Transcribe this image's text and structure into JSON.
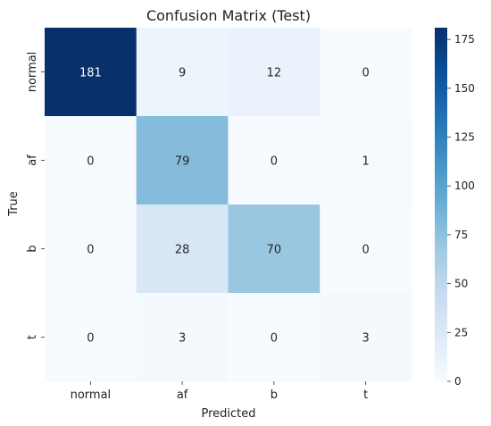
{
  "chart_data": {
    "type": "heatmap",
    "title": "Confusion Matrix (Test)",
    "xlabel": "Predicted",
    "ylabel": "True",
    "x_categories": [
      "normal",
      "af",
      "b",
      "t"
    ],
    "y_categories": [
      "normal",
      "af",
      "b",
      "t"
    ],
    "values": [
      [
        181,
        9,
        12,
        0
      ],
      [
        0,
        79,
        0,
        1
      ],
      [
        0,
        28,
        70,
        0
      ],
      [
        0,
        3,
        0,
        3
      ]
    ],
    "colorbar": {
      "min": 0,
      "max": 181,
      "ticks": [
        0,
        25,
        50,
        75,
        100,
        125,
        150,
        175
      ],
      "colormap": "Blues"
    }
  }
}
